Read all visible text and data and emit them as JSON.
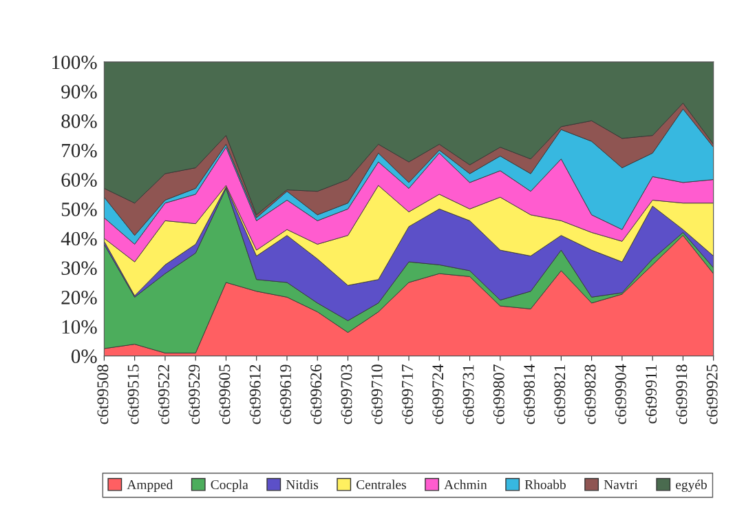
{
  "chart_data": {
    "type": "area",
    "stacked": true,
    "categories": [
      "c6t99508",
      "c6t99515",
      "c6t99522",
      "c6t99529",
      "c6t99605",
      "c6t99612",
      "c6t99619",
      "c6t99626",
      "c6t99703",
      "c6t99710",
      "c6t99717",
      "c6t99724",
      "c6t99731",
      "c6t99807",
      "c6t99814",
      "c6t99821",
      "c6t99828",
      "c6t99904",
      "c6t99911",
      "c6t99918",
      "c6t99925"
    ],
    "series": [
      {
        "name": "Ampped",
        "color": "#ff5f62",
        "values": [
          2.5,
          4,
          1,
          1,
          25,
          22,
          20,
          15,
          8,
          15,
          25,
          28,
          27,
          17,
          16,
          29,
          18,
          21,
          31,
          41,
          28
        ]
      },
      {
        "name": "Cocpla",
        "color": "#4cad5c",
        "values": [
          35.5,
          16,
          27,
          34,
          32,
          4,
          5,
          3,
          4,
          3,
          7,
          3,
          2,
          2,
          6,
          7,
          2,
          0.5,
          2,
          1,
          2
        ]
      },
      {
        "name": "Nitdis",
        "color": "#5c50c8",
        "values": [
          1,
          0.5,
          3,
          3,
          0.5,
          8,
          16,
          15,
          12,
          8,
          12,
          19,
          17,
          17,
          12,
          5,
          16,
          10.5,
          18,
          1,
          4
        ]
      },
      {
        "name": "Centrales",
        "color": "#fff060",
        "values": [
          1,
          11.5,
          15,
          7,
          0.5,
          2,
          2,
          5,
          17,
          32,
          5,
          5,
          4,
          18,
          14,
          5,
          6,
          7,
          2,
          9,
          18
        ]
      },
      {
        "name": "Achmin",
        "color": "#ff5ccf",
        "values": [
          7,
          6,
          6,
          10,
          13,
          10,
          10,
          8,
          9,
          8,
          8,
          14,
          9,
          9,
          8,
          21,
          6,
          4,
          8,
          7,
          8
        ]
      },
      {
        "name": "Rhoabb",
        "color": "#37b8e0",
        "values": [
          7,
          3,
          1,
          2,
          1,
          1,
          3,
          2,
          2,
          3,
          2,
          1,
          3,
          5,
          6,
          10,
          25,
          21,
          8,
          25,
          11
        ]
      },
      {
        "name": "Navtri",
        "color": "#8f5552",
        "values": [
          3,
          11,
          9,
          7,
          3,
          1,
          0.5,
          8,
          8,
          3,
          7,
          2,
          3,
          3,
          5,
          1,
          7,
          10,
          6,
          2,
          1
        ]
      },
      {
        "name": "egyéb",
        "color": "#4a6b4f",
        "values": [
          43,
          48,
          38,
          36,
          25,
          52,
          43.5,
          44,
          40,
          28,
          34,
          28,
          35,
          29,
          33,
          22,
          20,
          26,
          25,
          14,
          28
        ]
      }
    ],
    "ylim": [
      0,
      100
    ],
    "yticks": [
      {
        "value": 0,
        "label": "0%"
      },
      {
        "value": 10,
        "label": "10%"
      },
      {
        "value": 20,
        "label": "20%"
      },
      {
        "value": 30,
        "label": "30%"
      },
      {
        "value": 40,
        "label": "40%"
      },
      {
        "value": 50,
        "label": "50%"
      },
      {
        "value": 60,
        "label": "60%"
      },
      {
        "value": 70,
        "label": "70%"
      },
      {
        "value": 80,
        "label": "80%"
      },
      {
        "value": 90,
        "label": "90%"
      },
      {
        "value": 100,
        "label": "100%"
      }
    ],
    "legend": "bottom"
  }
}
